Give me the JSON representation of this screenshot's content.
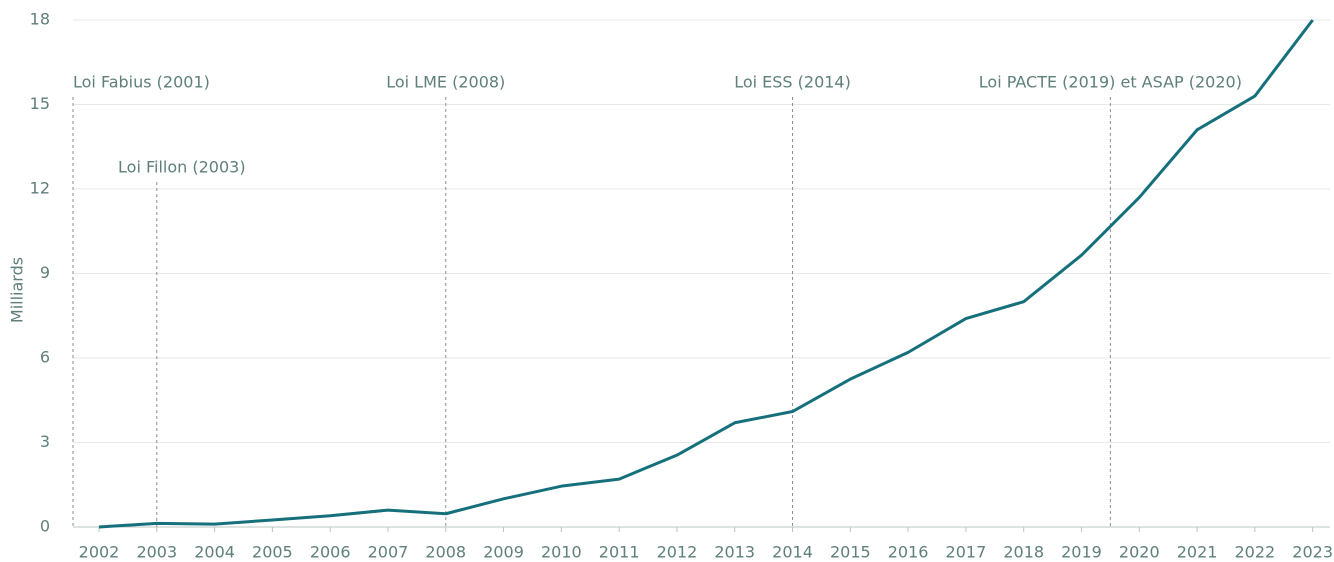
{
  "chart_data": {
    "type": "line",
    "y_label": "Milliards",
    "x": [
      2002,
      2003,
      2004,
      2005,
      2006,
      2007,
      2008,
      2009,
      2010,
      2011,
      2012,
      2013,
      2014,
      2015,
      2016,
      2017,
      2018,
      2019,
      2020,
      2021,
      2022,
      2023
    ],
    "series": [
      {
        "name": "Milliards",
        "color": "#16707c",
        "values": [
          0.0,
          0.13,
          0.1,
          0.25,
          0.4,
          0.6,
          0.47,
          1.0,
          1.45,
          1.7,
          2.55,
          3.7,
          4.1,
          5.25,
          6.2,
          7.4,
          8.0,
          9.65,
          11.7,
          14.1,
          15.3,
          18.0
        ]
      }
    ],
    "xlim": [
      2001.55,
      2023.3
    ],
    "xticks": [
      2002,
      2003,
      2004,
      2005,
      2006,
      2007,
      2008,
      2009,
      2010,
      2011,
      2012,
      2013,
      2014,
      2015,
      2016,
      2017,
      2018,
      2019,
      2020,
      2021,
      2022,
      2023
    ],
    "ylim": [
      0,
      18
    ],
    "yticks": [
      0,
      3,
      6,
      9,
      12,
      15,
      18
    ],
    "grid": true,
    "annotations": [
      {
        "text": "Loi Fabius (2001)",
        "x": 2001.55
      },
      {
        "text": "Loi Fillon (2003)",
        "x": 2003
      },
      {
        "text": "Loi LME (2008)",
        "x": 2008
      },
      {
        "text": "Loi ESS (2014)",
        "x": 2014
      },
      {
        "text": "Loi PACTE (2019) et ASAP (2020)",
        "x": 2019.5
      }
    ]
  }
}
